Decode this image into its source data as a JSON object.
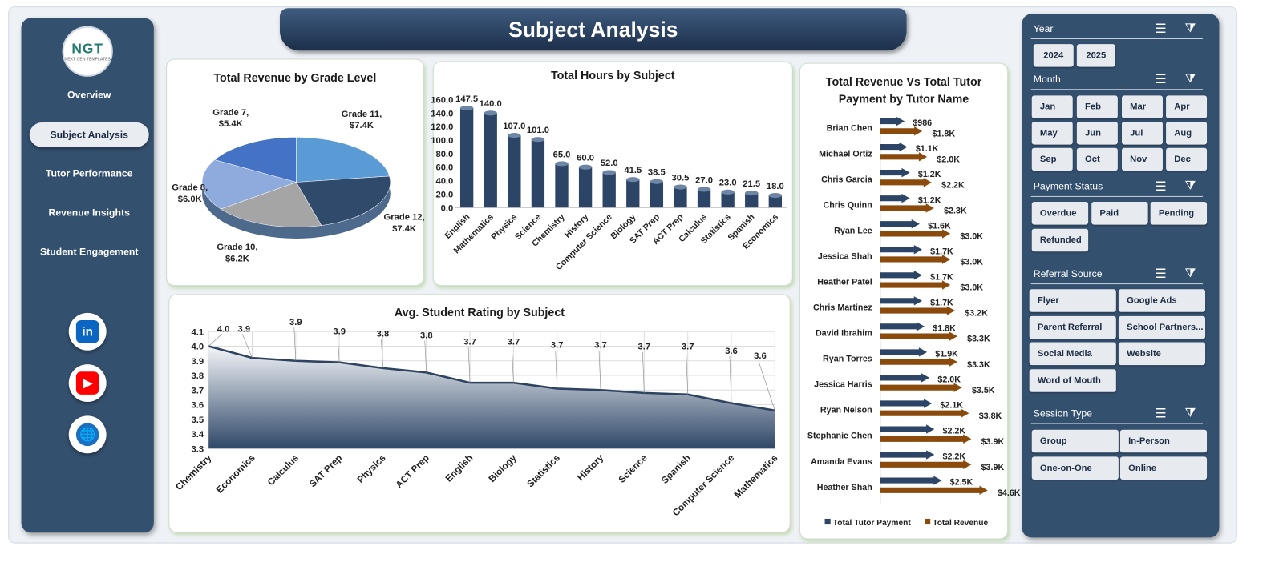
{
  "title": "Subject Analysis",
  "logo": {
    "text": "NGT",
    "subtext": "NEXT GEN TEMPLATES"
  },
  "nav": [
    {
      "label": "Overview"
    },
    {
      "label": "Subject Analysis",
      "active": true
    },
    {
      "label": "Tutor Performance"
    },
    {
      "label": "Revenue Insights"
    },
    {
      "label": "Student Engagement"
    }
  ],
  "social": [
    {
      "icon": "linkedin-icon",
      "text": "in",
      "color": "#0a66c2"
    },
    {
      "icon": "youtube-icon",
      "text": "▶",
      "color": "#ff0000"
    },
    {
      "icon": "globe-icon",
      "text": "🌐",
      "color": "#1a6fc0"
    }
  ],
  "slicers": {
    "year": {
      "title": "Year",
      "items": [
        "2024",
        "2025"
      ]
    },
    "month": {
      "title": "Month",
      "items": [
        "Jan",
        "Feb",
        "Mar",
        "Apr",
        "May",
        "Jun",
        "Jul",
        "Aug",
        "Sep",
        "Oct",
        "Nov",
        "Dec"
      ]
    },
    "payment": {
      "title": "Payment Status",
      "items": [
        "Overdue",
        "Paid",
        "Pending",
        "Refunded"
      ]
    },
    "referral": {
      "title": "Referral Source",
      "items": [
        "Flyer",
        "Google Ads",
        "Parent Referral",
        "School Partners...",
        "Social Media",
        "Website",
        "Word of Mouth"
      ]
    },
    "session": {
      "title": "Session Type",
      "items": [
        "Group",
        "In-Person",
        "One-on-One",
        "Online"
      ]
    }
  },
  "chart_data": [
    {
      "type": "pie",
      "title": "Total Revenue by Grade Level",
      "categories": [
        "Grade 11",
        "Grade 12",
        "Grade 10",
        "Grade 8",
        "Grade 7"
      ],
      "values": [
        7.4,
        7.4,
        6.2,
        6.0,
        5.4
      ],
      "labels": [
        "$7.4K",
        "$7.4K",
        "$6.2K",
        "$6.0K",
        "$5.4K"
      ],
      "colors": [
        "#5b9bd5",
        "#2f4a6b",
        "#a5a5a5",
        "#8faadc",
        "#4472c4"
      ]
    },
    {
      "type": "bar",
      "title": "Total Hours by Subject",
      "categories": [
        "English",
        "Mathematics",
        "Physics",
        "Science",
        "Chemistry",
        "History",
        "Computer Science",
        "Biology",
        "SAT Prep",
        "ACT Prep",
        "Calculus",
        "Statistics",
        "Spanish",
        "Economics"
      ],
      "values": [
        147.5,
        140.0,
        107.0,
        101.0,
        65.0,
        60.0,
        52.0,
        41.5,
        38.5,
        30.5,
        27.0,
        23.0,
        21.5,
        18.0
      ],
      "ylim": [
        0,
        160
      ],
      "yticks": [
        "0.0",
        "20.0",
        "40.0",
        "60.0",
        "80.0",
        "100.0",
        "120.0",
        "140.0",
        "160.0"
      ],
      "color": "#2c4566"
    },
    {
      "type": "area",
      "title": "Avg. Student Rating by Subject",
      "categories": [
        "Chemistry",
        "Economics",
        "Calculus",
        "SAT Prep",
        "Physics",
        "ACT Prep",
        "English",
        "Biology",
        "Statistics",
        "History",
        "Science",
        "Spanish",
        "Computer Science",
        "Mathematics"
      ],
      "values": [
        4.0,
        3.92,
        3.9,
        3.89,
        3.85,
        3.82,
        3.75,
        3.75,
        3.71,
        3.7,
        3.68,
        3.67,
        3.61,
        3.56
      ],
      "labels": [
        "4.0",
        "3.9",
        "3.9",
        "3.9",
        "3.8",
        "3.8",
        "3.7",
        "3.7",
        "3.7",
        "3.7",
        "3.7",
        "3.7",
        "3.6",
        "3.6"
      ],
      "ylim": [
        3.3,
        4.1
      ],
      "yticks": [
        "3.3",
        "3.4",
        "3.5",
        "3.6",
        "3.7",
        "3.8",
        "3.9",
        "4.0",
        "4.1"
      ],
      "grid": true
    },
    {
      "type": "bar",
      "orientation": "horizontal",
      "title": "Total Revenue Vs Total Tutor Payment by Tutor Name",
      "categories": [
        "Brian Chen",
        "Michael Ortiz",
        "Chris Garcia",
        "Chris Quinn",
        "Ryan Lee",
        "Jessica Shah",
        "Heather Patel",
        "Chris Martinez",
        "David Ibrahim",
        "Ryan Torres",
        "Jessica Harris",
        "Ryan Nelson",
        "Stephanie Chen",
        "Amanda Evans",
        "Heather Shah"
      ],
      "series": [
        {
          "name": "Total Tutor Payment",
          "color": "#2c4566",
          "values": [
            986,
            1100,
            1200,
            1200,
            1600,
            1700,
            1700,
            1700,
            1800,
            1900,
            2000,
            2100,
            2200,
            2200,
            2500
          ],
          "labels": [
            "$986",
            "$1.1K",
            "$1.2K",
            "$1.2K",
            "$1.6K",
            "$1.7K",
            "$1.7K",
            "$1.7K",
            "$1.8K",
            "$1.9K",
            "$2.0K",
            "$2.1K",
            "$2.2K",
            "$2.2K",
            "$2.5K"
          ]
        },
        {
          "name": "Total Revenue",
          "color": "#8a4a0c",
          "values": [
            1800,
            2000,
            2200,
            2300,
            3000,
            3000,
            3000,
            3200,
            3300,
            3300,
            3500,
            3800,
            3900,
            3900,
            4600
          ],
          "labels": [
            "$1.8K",
            "$2.0K",
            "$2.2K",
            "$2.3K",
            "$3.0K",
            "$3.0K",
            "$3.0K",
            "$3.2K",
            "$3.3K",
            "$3.3K",
            "$3.5K",
            "$3.8K",
            "$3.9K",
            "$3.9K",
            "$4.6K"
          ]
        }
      ],
      "legend": "bottom"
    }
  ]
}
